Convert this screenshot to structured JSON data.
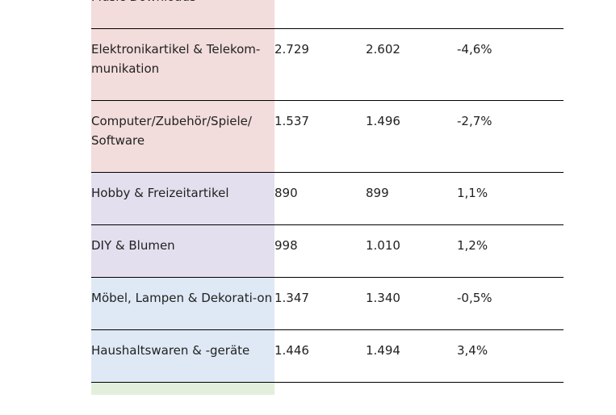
{
  "rows": [
    {
      "category": "Music Downloads",
      "v1": "",
      "v2": "",
      "change": "",
      "color": "#f2dcdc"
    },
    {
      "category": "Elektronikartikel & Telekom-munikation",
      "v1": "2.729",
      "v2": "2.602",
      "change": "-4,6%",
      "color": "#f2dcdc"
    },
    {
      "category": "Computer/Zubehör/Spiele/ Software",
      "v1": "1.537",
      "v2": "1.496",
      "change": "-2,7%",
      "color": "#f2dcdc"
    },
    {
      "category": "Hobby & Freizeitartikel",
      "v1": "890",
      "v2": "899",
      "change": "1,1%",
      "color": "#e4dfee"
    },
    {
      "category": "DIY & Blumen",
      "v1": "998",
      "v2": "1.010",
      "change": "1,2%",
      "color": "#e4dfee"
    },
    {
      "category": "Möbel, Lampen & Dekorati-on",
      "v1": "1.347",
      "v2": "1.340",
      "change": "-0,5%",
      "color": "#dfe9f5"
    },
    {
      "category": "Haushaltswaren & -geräte",
      "v1": "1.446",
      "v2": "1.494",
      "change": "3,4%",
      "color": "#dfe9f5"
    }
  ],
  "stub_color": "#e3efdc"
}
